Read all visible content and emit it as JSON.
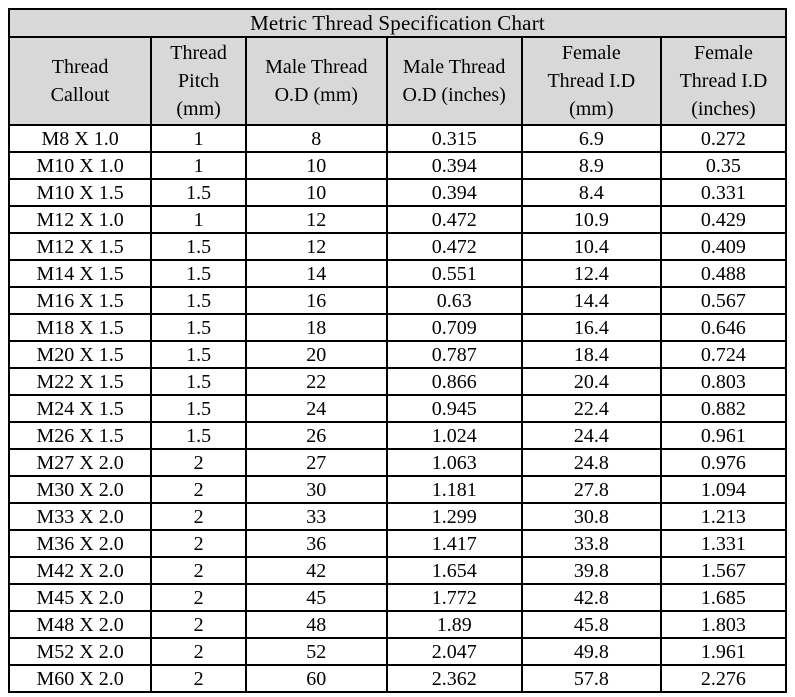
{
  "title": "Metric Thread Specification Chart",
  "chart_data": {
    "type": "table",
    "title": "Metric Thread Specification Chart",
    "columns": [
      "Thread\nCallout",
      "Thread\nPitch\n(mm)",
      "Male Thread\nO.D (mm)",
      "Male Thread\nO.D (inches)",
      "Female\nThread I.D\n(mm)",
      "Female\nThread I.D\n(inches)"
    ],
    "rows": [
      [
        "M8 X 1.0",
        "1",
        "8",
        "0.315",
        "6.9",
        "0.272"
      ],
      [
        "M10 X 1.0",
        "1",
        "10",
        "0.394",
        "8.9",
        "0.35"
      ],
      [
        "M10 X 1.5",
        "1.5",
        "10",
        "0.394",
        "8.4",
        "0.331"
      ],
      [
        "M12 X 1.0",
        "1",
        "12",
        "0.472",
        "10.9",
        "0.429"
      ],
      [
        "M12 X 1.5",
        "1.5",
        "12",
        "0.472",
        "10.4",
        "0.409"
      ],
      [
        "M14 X 1.5",
        "1.5",
        "14",
        "0.551",
        "12.4",
        "0.488"
      ],
      [
        "M16 X 1.5",
        "1.5",
        "16",
        "0.63",
        "14.4",
        "0.567"
      ],
      [
        "M18 X 1.5",
        "1.5",
        "18",
        "0.709",
        "16.4",
        "0.646"
      ],
      [
        "M20 X 1.5",
        "1.5",
        "20",
        "0.787",
        "18.4",
        "0.724"
      ],
      [
        "M22 X 1.5",
        "1.5",
        "22",
        "0.866",
        "20.4",
        "0.803"
      ],
      [
        "M24 X 1.5",
        "1.5",
        "24",
        "0.945",
        "22.4",
        "0.882"
      ],
      [
        "M26 X 1.5",
        "1.5",
        "26",
        "1.024",
        "24.4",
        "0.961"
      ],
      [
        "M27 X 2.0",
        "2",
        "27",
        "1.063",
        "24.8",
        "0.976"
      ],
      [
        "M30 X 2.0",
        "2",
        "30",
        "1.181",
        "27.8",
        "1.094"
      ],
      [
        "M33 X 2.0",
        "2",
        "33",
        "1.299",
        "30.8",
        "1.213"
      ],
      [
        "M36 X 2.0",
        "2",
        "36",
        "1.417",
        "33.8",
        "1.331"
      ],
      [
        "M42 X 2.0",
        "2",
        "42",
        "1.654",
        "39.8",
        "1.567"
      ],
      [
        "M45 X 2.0",
        "2",
        "45",
        "1.772",
        "42.8",
        "1.685"
      ],
      [
        "M48 X 2.0",
        "2",
        "48",
        "1.89",
        "45.8",
        "1.803"
      ],
      [
        "M52 X 2.0",
        "2",
        "52",
        "2.047",
        "49.8",
        "1.961"
      ],
      [
        "M60 X 2.0",
        "2",
        "60",
        "2.362",
        "57.8",
        "2.276"
      ]
    ]
  },
  "colors": {
    "header_bg": "#d8d8d8",
    "border": "#000000",
    "body_bg": "#ffffff",
    "text": "#000000"
  }
}
